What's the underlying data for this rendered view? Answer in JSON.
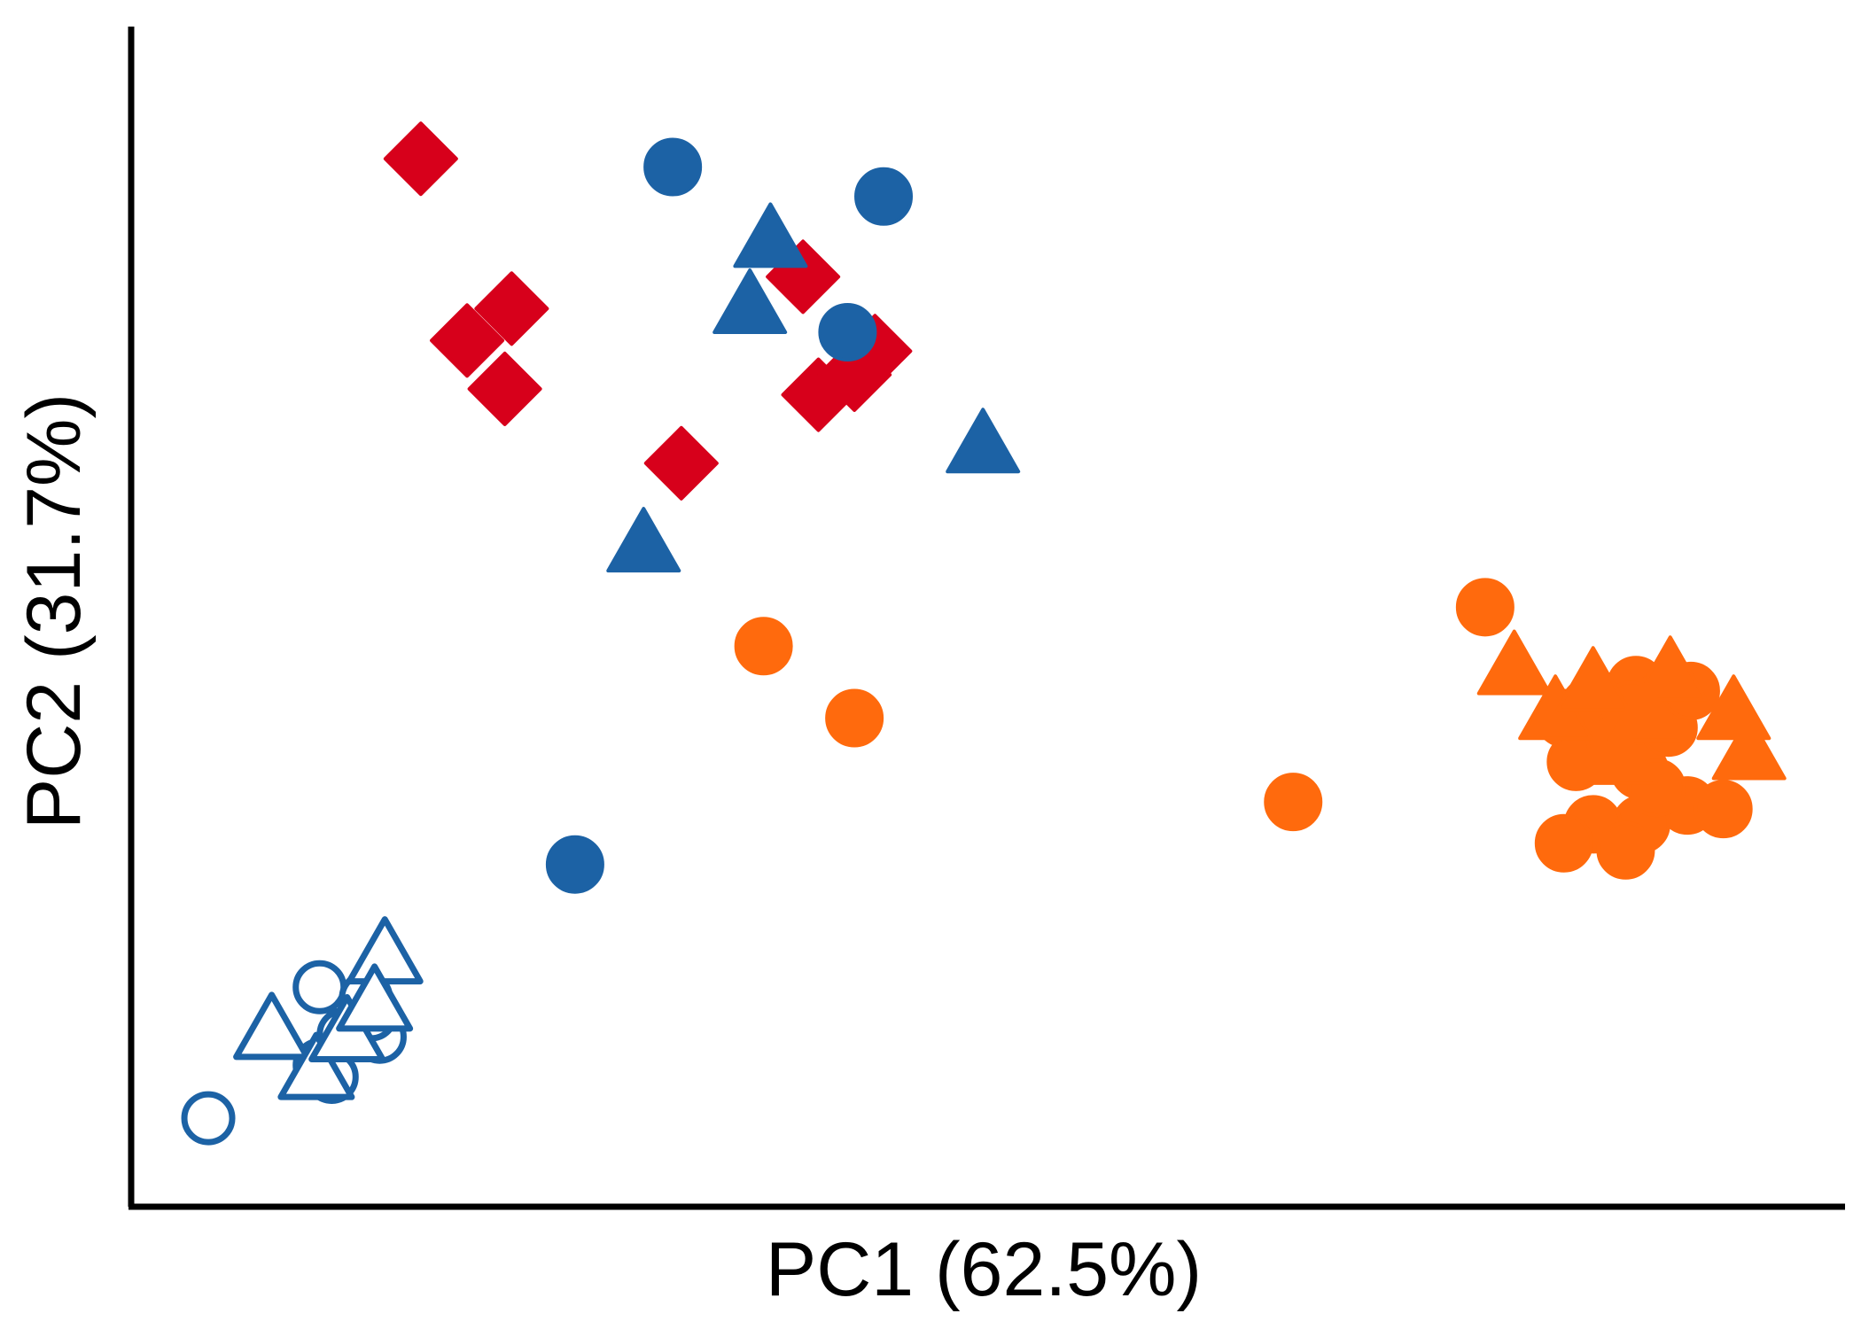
{
  "chart_data": {
    "type": "scatter",
    "title": "",
    "xlabel": "PC1 (62.5%)",
    "ylabel": "PC2 (31.7%)",
    "xlim": [
      0,
      100
    ],
    "ylim": [
      0,
      100
    ],
    "grid": false,
    "legend": "none",
    "colors": {
      "red": "#d7001b",
      "blue": "#1c62a5",
      "orange": "#ff6a0d"
    },
    "series": [
      {
        "color": "red",
        "marker": "diamond",
        "fill": "filled",
        "points": [
          [
            16.9,
            88.8
          ],
          [
            19.6,
            73.4
          ],
          [
            22.2,
            76.1
          ],
          [
            21.8,
            69.3
          ],
          [
            32.1,
            63.0
          ],
          [
            39.2,
            78.8
          ],
          [
            43.4,
            72.5
          ],
          [
            40.1,
            68.8
          ],
          [
            42.2,
            70.5
          ]
        ]
      },
      {
        "color": "blue",
        "marker": "circle",
        "fill": "filled",
        "points": [
          [
            31.6,
            88.1
          ],
          [
            43.9,
            85.6
          ],
          [
            41.8,
            74.1
          ],
          [
            25.9,
            29.0
          ]
        ]
      },
      {
        "color": "blue",
        "marker": "triangle",
        "fill": "filled",
        "points": [
          [
            37.3,
            81.8
          ],
          [
            36.1,
            76.2
          ],
          [
            49.7,
            64.4
          ],
          [
            29.9,
            56.0
          ]
        ]
      },
      {
        "color": "orange",
        "marker": "circle",
        "fill": "filled",
        "points": [
          [
            36.9,
            47.5
          ],
          [
            42.2,
            41.4
          ],
          [
            67.8,
            34.3
          ],
          [
            79.0,
            50.8
          ],
          [
            83.6,
            41.4
          ],
          [
            84.3,
            37.7
          ],
          [
            85.1,
            42.4
          ],
          [
            86.6,
            39.5
          ],
          [
            87.8,
            44.2
          ],
          [
            88.0,
            37.0
          ],
          [
            89.7,
            40.6
          ],
          [
            91.0,
            43.7
          ],
          [
            90.8,
            34.0
          ],
          [
            92.9,
            33.7
          ],
          [
            88.1,
            32.4
          ],
          [
            85.3,
            32.4
          ],
          [
            87.2,
            30.2
          ],
          [
            83.6,
            30.8
          ],
          [
            89.0,
            35.5
          ],
          [
            87.5,
            42.1
          ]
        ]
      },
      {
        "color": "orange",
        "marker": "triangle",
        "fill": "filled",
        "points": [
          [
            80.7,
            45.6
          ],
          [
            83.1,
            41.8
          ],
          [
            85.3,
            44.2
          ],
          [
            89.8,
            45.1
          ],
          [
            93.5,
            41.8
          ],
          [
            94.4,
            38.4
          ],
          [
            88.3,
            41.6
          ],
          [
            86.9,
            38.0
          ]
        ]
      },
      {
        "color": "blue",
        "marker": "circle",
        "fill": "hollow",
        "points": [
          [
            4.5,
            7.5
          ],
          [
            11.0,
            18.6
          ],
          [
            12.4,
            14.6
          ],
          [
            11.0,
            12.0
          ],
          [
            14.5,
            14.4
          ],
          [
            14.0,
            16.3
          ],
          [
            13.7,
            17.7
          ],
          [
            11.7,
            11.0
          ]
        ]
      },
      {
        "color": "blue",
        "marker": "triangle",
        "fill": "hollow",
        "points": [
          [
            14.8,
            21.2
          ],
          [
            8.2,
            14.8
          ],
          [
            10.8,
            11.4
          ],
          [
            12.6,
            14.6
          ],
          [
            14.2,
            17.2
          ]
        ]
      }
    ]
  }
}
